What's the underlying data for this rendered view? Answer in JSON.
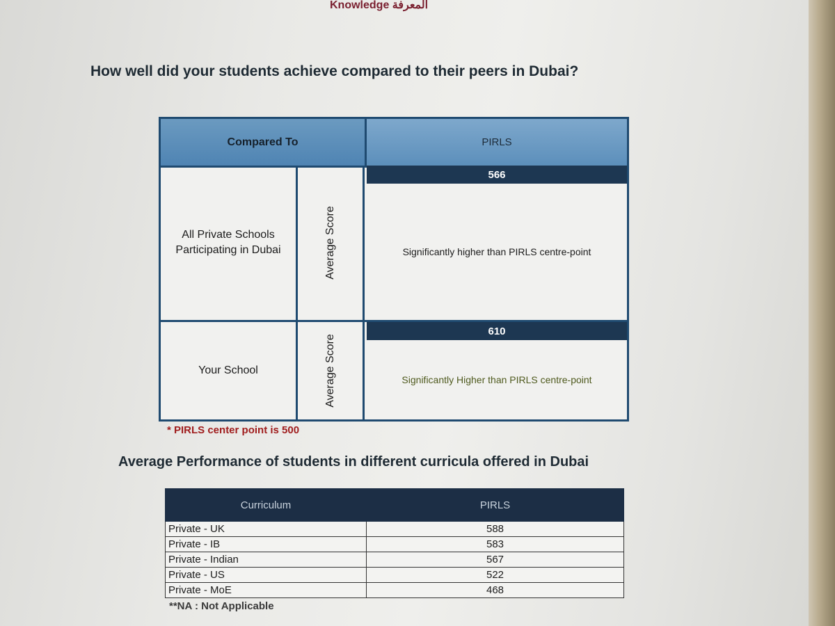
{
  "header": {
    "brand": "Knowledge المعرفة"
  },
  "section1": {
    "heading": "How well did your students achieve compared to their peers in Dubai?",
    "table": {
      "col_compared": "Compared To",
      "col_pirls": "PIRLS",
      "rows": [
        {
          "compared": "All Private Schools Participating in Dubai",
          "measure": "Average Score",
          "score": "566",
          "description": "Significantly  higher than PIRLS centre-point"
        },
        {
          "compared": "Your School",
          "measure": "Average Score",
          "score": "610",
          "description": "Significantly Higher than PIRLS centre-point"
        }
      ]
    },
    "footnote": "* PIRLS  center point is 500"
  },
  "section2": {
    "heading": "Average Performance of students in different curricula offered in Dubai",
    "table": {
      "col_curriculum": "Curriculum",
      "col_pirls": "PIRLS",
      "rows": [
        {
          "curriculum": "Private - UK",
          "pirls": "588"
        },
        {
          "curriculum": "Private - IB",
          "pirls": "583"
        },
        {
          "curriculum": "Private - Indian",
          "pirls": "567"
        },
        {
          "curriculum": "Private - US",
          "pirls": "522"
        },
        {
          "curriculum": "Private - MoE",
          "pirls": "468"
        }
      ]
    },
    "footnote": "**NA : Not Applicable"
  },
  "colors": {
    "header_blue": "#5c8fbb",
    "dark_navy": "#1d3752",
    "footnote_red": "#a01e1e",
    "highlight_text_green": "#4f5a1e"
  }
}
